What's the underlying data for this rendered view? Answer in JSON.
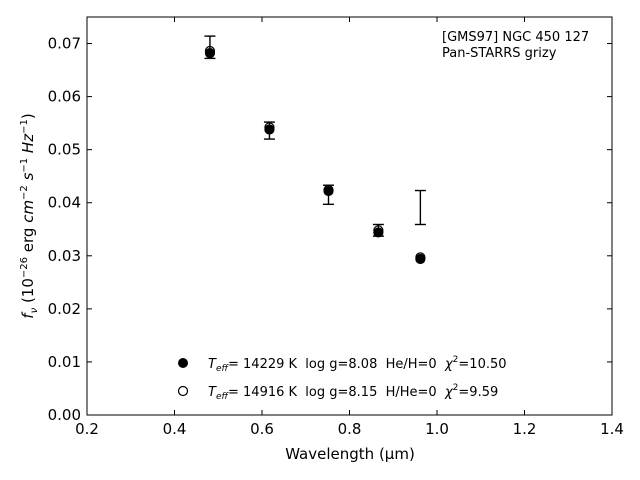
{
  "chart_data": {
    "type": "scatter",
    "title": "",
    "xlabel": "Wavelength (μm)",
    "ylabel": "f_ν (10^-26 erg cm^-2 s^-1 Hz^-1)",
    "xlim": [
      0.2,
      1.4
    ],
    "ylim": [
      0.0,
      0.075
    ],
    "x_ticks": [
      "0.2",
      "0.4",
      "0.6",
      "0.8",
      "1.0",
      "1.2",
      "1.4"
    ],
    "y_ticks": [
      "0.00",
      "0.01",
      "0.02",
      "0.03",
      "0.04",
      "0.05",
      "0.06",
      "0.07"
    ],
    "x_tick_values": [
      0.2,
      0.4,
      0.6,
      0.8,
      1.0,
      1.2,
      1.4
    ],
    "y_tick_values": [
      0.0,
      0.01,
      0.02,
      0.03,
      0.04,
      0.05,
      0.06,
      0.07
    ],
    "annotation": [
      "[GMS97] NGC 450 127",
      "Pan-STARRS grizy"
    ],
    "observed": {
      "x": [
        0.481,
        0.617,
        0.752,
        0.866,
        0.962
      ],
      "y": [
        0.0693,
        0.0536,
        0.0415,
        0.0348,
        0.0391
      ],
      "yerr": [
        0.0021,
        0.0016,
        0.0018,
        0.0011,
        0.0032
      ]
    },
    "series": [
      {
        "marker": "filled-circle",
        "label": {
          "prefix": "T",
          "sub": "eff",
          "text": "= 14229 K  log g=8.08  He/H=0  ",
          "chi": "χ",
          "sup": "2",
          "chi_value": "=10.50"
        },
        "x": [
          0.481,
          0.617,
          0.752,
          0.866,
          0.962
        ],
        "y": [
          0.0682,
          0.0538,
          0.0422,
          0.0344,
          0.0294
        ]
      },
      {
        "marker": "open-circle",
        "label": {
          "prefix": "T",
          "sub": "eff",
          "text": "= 14916 K  log g=8.15  H/He=0  ",
          "chi": "χ",
          "sup": "2",
          "chi_value": "=9.59"
        },
        "x": [
          0.481,
          0.617,
          0.752,
          0.866,
          0.962
        ],
        "y": [
          0.0686,
          0.0542,
          0.0424,
          0.0348,
          0.0297
        ]
      }
    ],
    "grid": false,
    "legend_position": "lower-center"
  }
}
